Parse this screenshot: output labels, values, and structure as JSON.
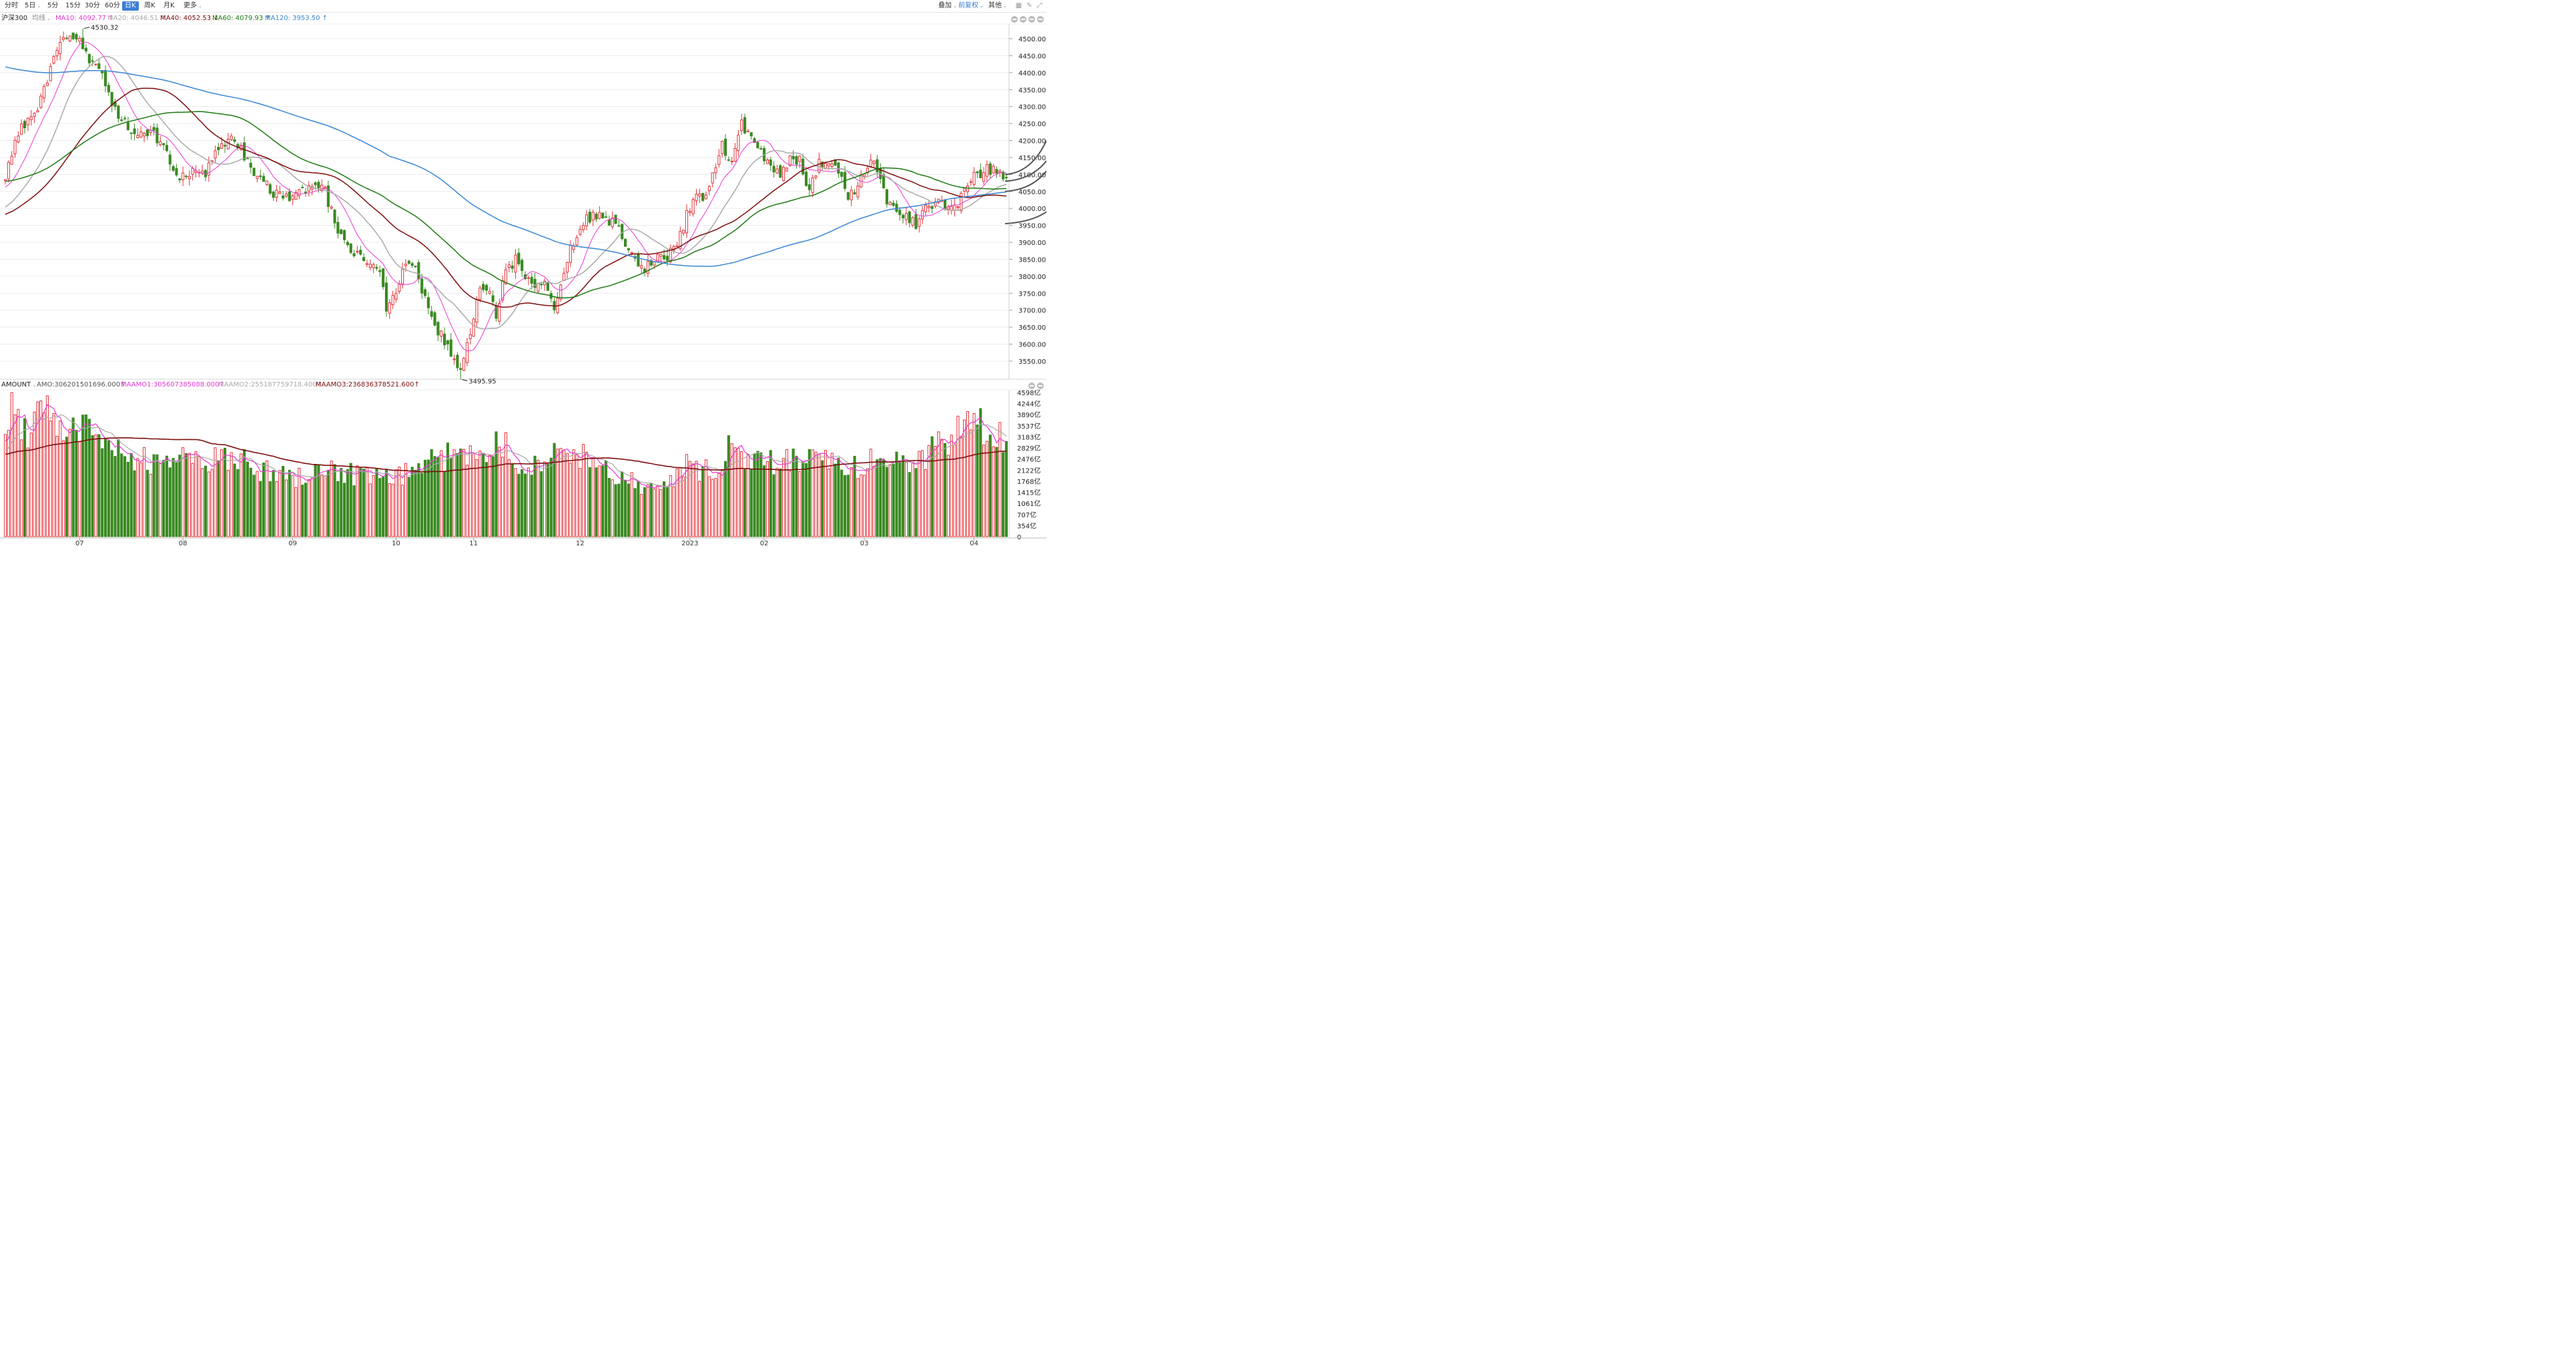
{
  "toolbar": {
    "items": [
      {
        "label": "分时",
        "active": false,
        "dropdown": false
      },
      {
        "label": "5日",
        "active": false,
        "dropdown": true
      },
      {
        "label": "5分",
        "active": false,
        "dropdown": false
      },
      {
        "label": "15分",
        "active": false,
        "dropdown": false
      },
      {
        "label": "30分",
        "active": false,
        "dropdown": false
      },
      {
        "label": "60分",
        "active": false,
        "dropdown": false
      },
      {
        "label": "日K",
        "active": true,
        "dropdown": false
      },
      {
        "label": "周K",
        "active": false,
        "dropdown": false
      },
      {
        "label": "月K",
        "active": false,
        "dropdown": false
      },
      {
        "label": "更多",
        "active": false,
        "dropdown": true
      }
    ],
    "overlay_label": "叠加",
    "adjust_label": "前复权",
    "other_label": "其他"
  },
  "price_legend": {
    "symbol": "沪深300",
    "ma_type": "均线",
    "ma10": "MA10: 4092.77 ↑",
    "ma20": "MA20: 4046.51 ↑",
    "ma40": "MA40: 4052.53 ↓",
    "ma60": "MA60: 4079.93 ↑",
    "ma120": "MA120: 3953.50 ↑"
  },
  "volume_legend": {
    "name": "AMOUNT",
    "amo": "AMO:306201501696.000↑",
    "maamo1": "MAAMO1:305607385088.000↑",
    "maamo2": "MAAMO2:255187759718.400↑",
    "maamo3": "MAAMO3:236836378521.600↑"
  },
  "colors": {
    "up": "#e4343b",
    "down": "#3b8a23",
    "ma10": "#e838d6",
    "ma20": "#aaaaaa",
    "ma40": "#7d0d0d",
    "ma60": "#1e7a12",
    "ma120": "#3a87d4",
    "active_tab": "#3d7fd6"
  },
  "chart_data": [
    {
      "type": "candlestick",
      "name": "沪深300",
      "y_ticks": [
        "4500.00",
        "4450.00",
        "4400.00",
        "4350.00",
        "4300.00",
        "4250.00",
        "4200.00",
        "4150.00",
        "4100.00",
        "4050.00",
        "4000.00",
        "3950.00",
        "3900.00",
        "3850.00",
        "3800.00",
        "3750.00",
        "3700.00",
        "3650.00",
        "3600.00",
        "3550.00"
      ],
      "ylim": [
        3490,
        4530
      ],
      "x_labels": [
        {
          "label": "07",
          "index": 23
        },
        {
          "label": "08",
          "index": 55
        },
        {
          "label": "09",
          "index": 89
        },
        {
          "label": "10",
          "index": 121
        },
        {
          "label": "11",
          "index": 145
        },
        {
          "label": "12",
          "index": 178
        },
        {
          "label": "2023",
          "index": 212
        },
        {
          "label": "02",
          "index": 235
        },
        {
          "label": "03",
          "index": 266
        },
        {
          "label": "04",
          "index": 300
        }
      ],
      "annotations": [
        {
          "text": "4530.32",
          "index": 24,
          "value": 4530.32
        },
        {
          "text": "3495.95",
          "index": 141,
          "value": 3495.95
        }
      ],
      "ohlc_keypoints": [
        {
          "i": 0,
          "close": 4100
        },
        {
          "i": 5,
          "close": 4240
        },
        {
          "i": 10,
          "close": 4300
        },
        {
          "i": 13,
          "close": 4380
        },
        {
          "i": 17,
          "close": 4490
        },
        {
          "i": 22,
          "close": 4500
        },
        {
          "i": 24,
          "close": 4480
        },
        {
          "i": 27,
          "close": 4420
        },
        {
          "i": 30,
          "close": 4390
        },
        {
          "i": 33,
          "close": 4310
        },
        {
          "i": 36,
          "close": 4260
        },
        {
          "i": 40,
          "close": 4220
        },
        {
          "i": 45,
          "close": 4230
        },
        {
          "i": 50,
          "close": 4170
        },
        {
          "i": 54,
          "close": 4080
        },
        {
          "i": 58,
          "close": 4120
        },
        {
          "i": 62,
          "close": 4100
        },
        {
          "i": 66,
          "close": 4170
        },
        {
          "i": 70,
          "close": 4200
        },
        {
          "i": 74,
          "close": 4160
        },
        {
          "i": 78,
          "close": 4090
        },
        {
          "i": 84,
          "close": 4040
        },
        {
          "i": 88,
          "close": 4020
        },
        {
          "i": 94,
          "close": 4060
        },
        {
          "i": 98,
          "close": 4080
        },
        {
          "i": 102,
          "close": 3960
        },
        {
          "i": 107,
          "close": 3880
        },
        {
          "i": 112,
          "close": 3850
        },
        {
          "i": 116,
          "close": 3820
        },
        {
          "i": 118,
          "close": 3710
        },
        {
          "i": 121,
          "close": 3750
        },
        {
          "i": 124,
          "close": 3830
        },
        {
          "i": 127,
          "close": 3840
        },
        {
          "i": 130,
          "close": 3730
        },
        {
          "i": 133,
          "close": 3650
        },
        {
          "i": 136,
          "close": 3610
        },
        {
          "i": 139,
          "close": 3540
        },
        {
          "i": 141,
          "close": 3510
        },
        {
          "i": 143,
          "close": 3610
        },
        {
          "i": 145,
          "close": 3660
        },
        {
          "i": 147,
          "close": 3780
        },
        {
          "i": 150,
          "close": 3740
        },
        {
          "i": 152,
          "close": 3690
        },
        {
          "i": 155,
          "close": 3810
        },
        {
          "i": 158,
          "close": 3850
        },
        {
          "i": 161,
          "close": 3800
        },
        {
          "i": 164,
          "close": 3760
        },
        {
          "i": 167,
          "close": 3780
        },
        {
          "i": 170,
          "close": 3700
        },
        {
          "i": 173,
          "close": 3820
        },
        {
          "i": 176,
          "close": 3900
        },
        {
          "i": 179,
          "close": 3950
        },
        {
          "i": 182,
          "close": 3990
        },
        {
          "i": 185,
          "close": 3960
        },
        {
          "i": 189,
          "close": 3960
        },
        {
          "i": 192,
          "close": 3900
        },
        {
          "i": 195,
          "close": 3840
        },
        {
          "i": 198,
          "close": 3810
        },
        {
          "i": 201,
          "close": 3860
        },
        {
          "i": 204,
          "close": 3850
        },
        {
          "i": 207,
          "close": 3880
        },
        {
          "i": 210,
          "close": 3950
        },
        {
          "i": 213,
          "close": 4030
        },
        {
          "i": 216,
          "close": 4040
        },
        {
          "i": 219,
          "close": 4090
        },
        {
          "i": 222,
          "close": 4180
        },
        {
          "i": 225,
          "close": 4150
        },
        {
          "i": 228,
          "close": 4260
        },
        {
          "i": 231,
          "close": 4200
        },
        {
          "i": 234,
          "close": 4160
        },
        {
          "i": 237,
          "close": 4110
        },
        {
          "i": 240,
          "close": 4100
        },
        {
          "i": 243,
          "close": 4140
        },
        {
          "i": 246,
          "close": 4150
        },
        {
          "i": 249,
          "close": 4040
        },
        {
          "i": 252,
          "close": 4140
        },
        {
          "i": 255,
          "close": 4140
        },
        {
          "i": 258,
          "close": 4110
        },
        {
          "i": 261,
          "close": 4040
        },
        {
          "i": 264,
          "close": 4070
        },
        {
          "i": 267,
          "close": 4130
        },
        {
          "i": 270,
          "close": 4120
        },
        {
          "i": 273,
          "close": 4030
        },
        {
          "i": 276,
          "close": 4000
        },
        {
          "i": 279,
          "close": 3980
        },
        {
          "i": 282,
          "close": 3950
        },
        {
          "i": 285,
          "close": 4010
        },
        {
          "i": 288,
          "close": 4020
        },
        {
          "i": 291,
          "close": 4010
        },
        {
          "i": 294,
          "close": 4000
        },
        {
          "i": 297,
          "close": 4060
        },
        {
          "i": 300,
          "close": 4090
        },
        {
          "i": 303,
          "close": 4110
        },
        {
          "i": 306,
          "close": 4120
        },
        {
          "i": 308,
          "close": 4100
        },
        {
          "i": 310,
          "close": 4090
        }
      ]
    },
    {
      "type": "bar",
      "name": "AMOUNT",
      "unit": "亿",
      "y_ticks": [
        "4598亿",
        "4244亿",
        "3890亿",
        "3537亿",
        "3183亿",
        "2829亿",
        "2476亿",
        "2122亿",
        "1768亿",
        "1415亿",
        "1061亿",
        "707亿",
        "354亿",
        "0"
      ],
      "ylim": [
        0,
        4598
      ],
      "amount_keypoints": [
        {
          "i": 0,
          "v": 3300
        },
        {
          "i": 2,
          "v": 4598
        },
        {
          "i": 5,
          "v": 3200
        },
        {
          "i": 10,
          "v": 3700
        },
        {
          "i": 15,
          "v": 3900
        },
        {
          "i": 20,
          "v": 3500
        },
        {
          "i": 25,
          "v": 3300
        },
        {
          "i": 30,
          "v": 2900
        },
        {
          "i": 40,
          "v": 2500
        },
        {
          "i": 50,
          "v": 2200
        },
        {
          "i": 55,
          "v": 2700
        },
        {
          "i": 60,
          "v": 2300
        },
        {
          "i": 70,
          "v": 2600
        },
        {
          "i": 80,
          "v": 2100
        },
        {
          "i": 90,
          "v": 1900
        },
        {
          "i": 100,
          "v": 2200
        },
        {
          "i": 110,
          "v": 1900
        },
        {
          "i": 120,
          "v": 1800
        },
        {
          "i": 130,
          "v": 2300
        },
        {
          "i": 135,
          "v": 2500
        },
        {
          "i": 145,
          "v": 2700
        },
        {
          "i": 155,
          "v": 3100
        },
        {
          "i": 160,
          "v": 2100
        },
        {
          "i": 170,
          "v": 2600
        },
        {
          "i": 180,
          "v": 2600
        },
        {
          "i": 190,
          "v": 1900
        },
        {
          "i": 200,
          "v": 1500
        },
        {
          "i": 205,
          "v": 1600
        },
        {
          "i": 210,
          "v": 2300
        },
        {
          "i": 215,
          "v": 2000
        },
        {
          "i": 220,
          "v": 2200
        },
        {
          "i": 225,
          "v": 2900
        },
        {
          "i": 230,
          "v": 2300
        },
        {
          "i": 240,
          "v": 2400
        },
        {
          "i": 250,
          "v": 2500
        },
        {
          "i": 260,
          "v": 2100
        },
        {
          "i": 270,
          "v": 2500
        },
        {
          "i": 280,
          "v": 2300
        },
        {
          "i": 290,
          "v": 2900
        },
        {
          "i": 300,
          "v": 3800
        },
        {
          "i": 303,
          "v": 3300
        },
        {
          "i": 308,
          "v": 3100
        },
        {
          "i": 310,
          "v": 3060
        }
      ]
    }
  ]
}
